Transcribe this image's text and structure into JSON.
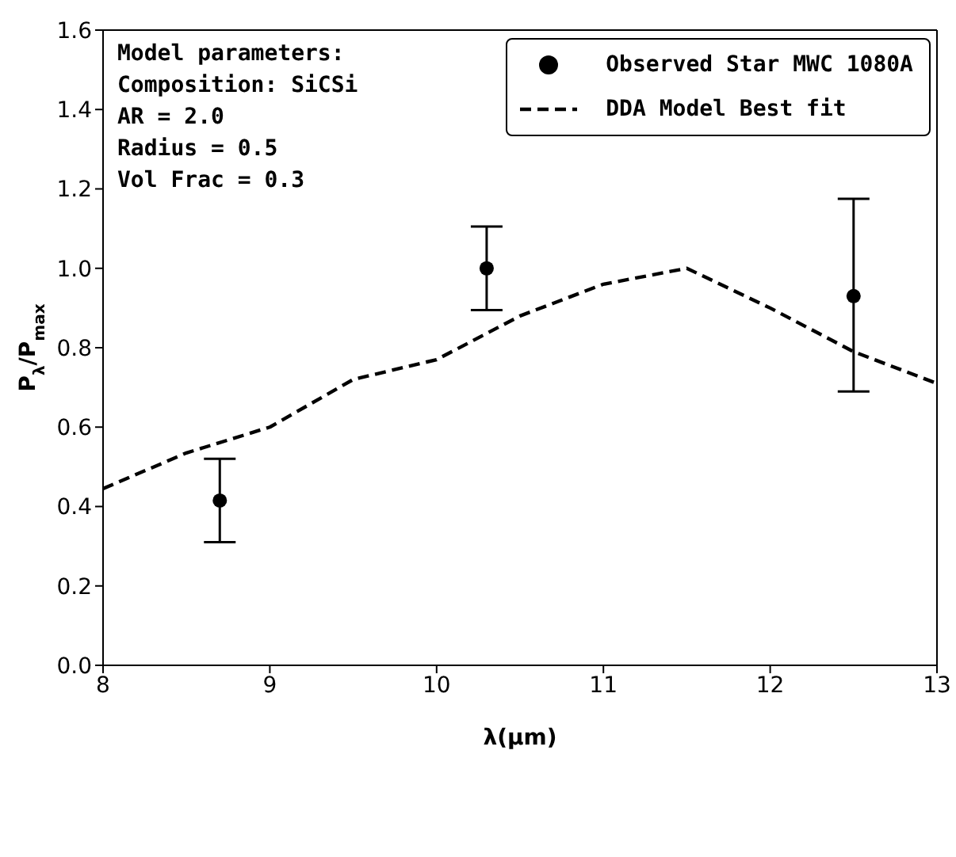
{
  "chart_data": {
    "type": "scatter",
    "xlabel": "λ(μm)",
    "ylabel": "P$_{λ}$/P$_{max}$",
    "xlim": [
      8,
      13
    ],
    "xticks": [
      8,
      9,
      10,
      11,
      12,
      13
    ],
    "ylim": [
      0,
      1.6
    ],
    "yticks": [
      {
        "value": 0,
        "label": "0.0"
      },
      0.2,
      0.4,
      0.6,
      0.8,
      {
        "value": 1,
        "label": "1.0"
      },
      1.2,
      1.4,
      1.6
    ],
    "grid": false,
    "legend": "top right",
    "annotations": [
      "Model parameters:",
      "Composition: SiCSi",
      "AR = 2.0",
      "Radius = 0.5",
      "Vol Frac = 0.3"
    ],
    "series": [
      {
        "name": "Observed Star MWC 1080A",
        "color": "#000000",
        "marker": "circle",
        "x": [
          8.7,
          10.3,
          12.5
        ],
        "values": [
          0.415,
          1.0,
          0.93
        ],
        "errors": [
          [
            0.31,
            0.52
          ],
          [
            0.895,
            1.105
          ],
          [
            0.69,
            1.175
          ]
        ]
      },
      {
        "name": "DDA Model Best fit",
        "type": "line",
        "color": "#000000",
        "marker": "none",
        "line_style": "dashed",
        "x": [
          8,
          8.5,
          9,
          9.5,
          10,
          10.5,
          11,
          11.5,
          12,
          12.5,
          13
        ],
        "values": [
          0.445,
          0.535,
          0.6,
          0.72,
          0.77,
          0.88,
          0.96,
          1.0,
          0.9,
          0.79,
          0.71
        ]
      }
    ]
  }
}
